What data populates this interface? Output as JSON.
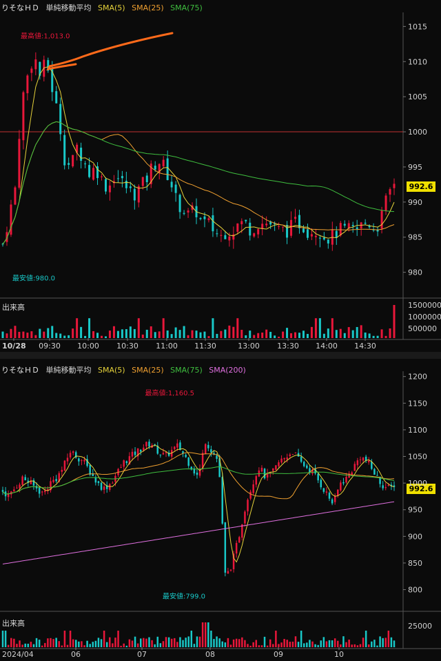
{
  "panels": [
    {
      "header": {
        "symbol": "りそなＨＤ",
        "title": "単純移動平均",
        "sma": [
          "SMA(5)",
          "SMA(25)",
          "SMA(75)"
        ]
      },
      "high_label": "最高値:1,013.0",
      "low_label": "最安値:980.0",
      "last_price": "992.6",
      "volume_label": "出来高",
      "price_ticks": [
        "1015",
        "1010",
        "1005",
        "1000",
        "995",
        "990",
        "985",
        "980"
      ],
      "volume_ticks": [
        "1500000",
        "1000000",
        "500000"
      ],
      "time_ticks": [
        "10/28",
        "09:30",
        "10:00",
        "10:30",
        "11:00",
        "11:30",
        "13:00",
        "13:30",
        "14:00",
        "14:30"
      ]
    },
    {
      "header": {
        "symbol": "りそなＨＤ",
        "title": "単純移動平均",
        "sma": [
          "SMA(5)",
          "SMA(25)",
          "SMA(75)",
          "SMA(200)"
        ]
      },
      "high_label": "最高値:1,160.5",
      "low_label": "最安値:799.0",
      "last_price": "992.6",
      "volume_label": "出来高",
      "price_ticks": [
        "1200",
        "1150",
        "1100",
        "1050",
        "1000",
        "950",
        "900",
        "850",
        "800"
      ],
      "volume_ticks": [
        "25000"
      ],
      "time_ticks": [
        "2024/04",
        "06",
        "07",
        "08",
        "09",
        "10"
      ]
    }
  ],
  "colors": {
    "up": "#e8173a",
    "down": "#19c8c8",
    "sma5": "#e6d23a",
    "sma25": "#f0a030",
    "sma75": "#3fbf3f",
    "sma200": "#e070e0",
    "refline": "#c03030",
    "annotation": "#ff6a1a"
  },
  "chart_data": [
    {
      "type": "candlestick",
      "title": "りそなＨＤ 単純移動平均 (intraday 10/28)",
      "ylim": [
        978,
        1017
      ],
      "reference_line": 1000,
      "high": 1013.0,
      "low": 980.0,
      "last": 992.6,
      "series": [
        "SMA(5)",
        "SMA(25)",
        "SMA(75)"
      ],
      "close_path": [
        984,
        988,
        992,
        1004,
        1008,
        1011,
        1008,
        1010,
        1006,
        1002,
        996,
        995,
        998,
        996,
        994,
        995,
        993,
        992,
        994,
        993,
        992,
        991,
        992,
        993,
        995,
        996,
        995,
        993,
        990,
        989,
        988,
        989,
        987,
        987,
        986,
        985,
        986,
        986,
        987,
        987,
        986,
        987,
        987,
        987,
        986,
        986,
        986,
        987,
        987,
        986,
        986,
        986,
        985,
        985,
        986,
        986,
        986,
        986,
        987,
        987,
        986,
        988,
        991,
        992.6
      ],
      "volume_peak": 1500000
    },
    {
      "type": "candlestick",
      "title": "りそなＨＤ 単純移動平均 (daily)",
      "ylim": [
        780,
        1210
      ],
      "high": 1160.5,
      "low": 799.0,
      "last": 992.6,
      "series": [
        "SMA(5)",
        "SMA(25)",
        "SMA(75)",
        "SMA(200)"
      ],
      "x_labels": [
        "2024/04",
        "06",
        "07",
        "08",
        "09",
        "10"
      ],
      "close_path": [
        985,
        975,
        995,
        1010,
        1000,
        990,
        980,
        1000,
        1010,
        1030,
        1060,
        1050,
        1040,
        1020,
        1000,
        990,
        1000,
        1020,
        1040,
        1050,
        1060,
        1070,
        1075,
        1060,
        1050,
        1060,
        1070,
        1050,
        1030,
        1010,
        1080,
        1060,
        1040,
        820,
        850,
        900,
        960,
        1000,
        1030,
        1010,
        1020,
        1040,
        1050,
        1060,
        1040,
        1030,
        1020,
        1000,
        980,
        960,
        1000,
        1010,
        1030,
        1050,
        1040,
        1020,
        1000,
        990,
        992.6
      ],
      "volume_peak": 25000
    }
  ]
}
